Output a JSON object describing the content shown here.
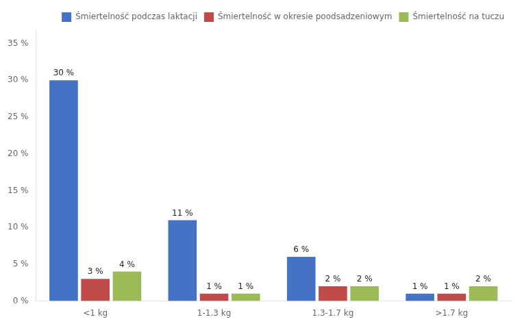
{
  "chart_data": {
    "type": "bar",
    "categories": [
      "<1 kg",
      "1-1.3 kg",
      "1.3-1.7 kg",
      ">1.7 kg"
    ],
    "series": [
      {
        "name": "Śmiertelność podczas laktacji",
        "color": "#4472C4",
        "values": [
          30,
          11,
          6,
          1
        ],
        "value_labels": [
          "30 %",
          "11 %",
          "6 %",
          "1 %"
        ]
      },
      {
        "name": "Śmiertelność w okresie poodsadzeniowym",
        "color": "#BE4B48",
        "values": [
          3,
          1,
          2,
          1
        ],
        "value_labels": [
          "3 %",
          "1 %",
          "2 %",
          "1 %"
        ]
      },
      {
        "name": "Śmiertelność na tuczu",
        "color": "#9BBB59",
        "values": [
          4,
          1,
          2,
          2
        ],
        "value_labels": [
          "4 %",
          "1 %",
          "2 %",
          "2 %"
        ]
      }
    ],
    "ylim": [
      0,
      37
    ],
    "yticks": [
      {
        "value": 0,
        "label": "0 %"
      },
      {
        "value": 5,
        "label": "5 %"
      },
      {
        "value": 10,
        "label": "10 %"
      },
      {
        "value": 15,
        "label": "15 %"
      },
      {
        "value": 20,
        "label": "20 %"
      },
      {
        "value": 25,
        "label": "25 %"
      },
      {
        "value": 30,
        "label": "30 %"
      },
      {
        "value": 35,
        "label": "35 %"
      }
    ],
    "grid": false,
    "legend": "upper right",
    "data_labels": true
  }
}
